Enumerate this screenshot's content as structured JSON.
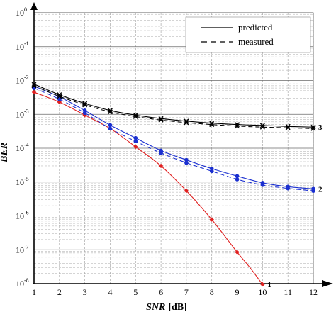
{
  "chart_data": {
    "type": "line",
    "xlabel": "SNR",
    "xlabel_unit": "[dB]",
    "ylabel": "BER",
    "xlim": [
      1,
      12
    ],
    "ylim": [
      1e-08,
      1
    ],
    "y_scale": "log",
    "y_base_label": "10",
    "x_ticks": [
      "1",
      "2",
      "3",
      "4",
      "5",
      "6",
      "7",
      "8",
      "9",
      "10",
      "11",
      "12"
    ],
    "y_ticks": [
      {
        "value": 1.0,
        "exp": "0"
      },
      {
        "value": 0.1,
        "exp": "-1"
      },
      {
        "value": 0.01,
        "exp": "-2"
      },
      {
        "value": 0.001,
        "exp": "-3"
      },
      {
        "value": 0.0001,
        "exp": "-4"
      },
      {
        "value": 1e-05,
        "exp": "-5"
      },
      {
        "value": 1e-06,
        "exp": "-6"
      },
      {
        "value": 1e-07,
        "exp": "-7"
      },
      {
        "value": 1e-08,
        "exp": "-8"
      }
    ],
    "grid": true,
    "legend": {
      "placement": "top-right",
      "entries": [
        {
          "label": "predicted",
          "style": "solid"
        },
        {
          "label": "measured",
          "style": "dashed"
        }
      ]
    },
    "series": [
      {
        "curve_label": "1",
        "color": "#e02020",
        "marker": "diamond",
        "x": [
          1,
          2,
          3,
          4,
          5,
          6,
          7,
          8,
          9,
          10
        ],
        "y": [
          0.0045,
          0.0023,
          0.00095,
          0.00038,
          0.00011,
          3e-05,
          5.5e-06,
          7.8e-07,
          8.5e-08,
          9.5e-09
        ],
        "line_x": [
          1,
          2,
          3,
          4,
          5,
          6,
          7,
          8,
          9,
          9.5,
          10
        ],
        "line_y": [
          0.0045,
          0.0023,
          0.00095,
          0.00038,
          0.00011,
          3e-05,
          5.5e-06,
          7.8e-07,
          8.5e-08,
          3e-08,
          9.5e-09
        ]
      },
      {
        "curve_label": "2",
        "color": "#1a2fd0",
        "marker": "circle",
        "x": [
          1,
          2,
          3,
          4,
          5,
          6,
          7,
          8,
          9,
          10,
          11,
          12
        ],
        "y": [
          0.0068,
          0.0033,
          0.0013,
          0.00048,
          0.0002,
          8.5e-05,
          4.5e-05,
          2.5e-05,
          1.5e-05,
          9.5e-06,
          7.3e-06,
          6.3e-06
        ],
        "y2": [
          0.006,
          0.0028,
          0.0011,
          0.00038,
          0.00016,
          7.2e-05,
          3.7e-05,
          2.1e-05,
          1.2e-05,
          8.2e-06,
          6.5e-06,
          5.5e-06
        ]
      },
      {
        "curve_label": "3",
        "color": "#000000",
        "marker": "x",
        "x": [
          1,
          2,
          3,
          4,
          5,
          6,
          7,
          8,
          9,
          10,
          11,
          12
        ],
        "y": [
          0.0078,
          0.0038,
          0.0021,
          0.0013,
          0.00095,
          0.00075,
          0.00063,
          0.00055,
          0.0005,
          0.00047,
          0.00044,
          0.00042
        ],
        "y2": [
          0.007,
          0.0034,
          0.0019,
          0.00118,
          0.00086,
          0.00068,
          0.00057,
          0.0005,
          0.00045,
          0.00042,
          0.0004,
          0.00038
        ]
      }
    ]
  }
}
